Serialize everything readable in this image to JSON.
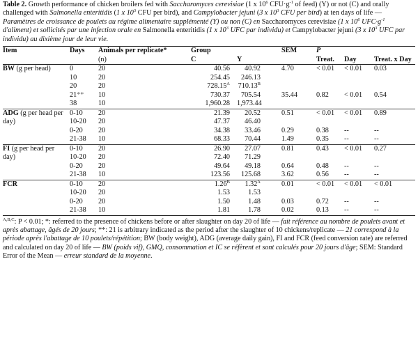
{
  "caption": {
    "label": "Table 2.",
    "en_1": " Growth performance of chicken broilers fed with ",
    "en_sc": "Saccharomyces cerevisiae",
    "en_2": " (1 x 10",
    "en_exp1": "6",
    "en_3": " CFU·g",
    "en_exp2": "-1",
    "en_4": " of feed) (Y) or not (C) and orally challenged with ",
    "en_se": "Salmonella enteritidis",
    "en_5": " (",
    "en_dose1": "1 x 10",
    "en_exp3": "3",
    "en_6": " CFU per bird), and ",
    "en_cj": "Campylobacter jejuni",
    "en_7": " (",
    "en_dose2": "3 x 10",
    "en_exp4": "3",
    "en_8": " CFU per bird",
    "en_9": ") at ten days of life — ",
    "fr_1": "Paramètres de croissance de poulets au régime alimentaire supplémenté (Y) ou non (C) en ",
    "fr_sc": "Saccharomyces cerevisiae",
    "fr_2": " (1 x 10",
    "fr_exp1": "6",
    "fr_3": " UFC·g",
    "fr_exp2": "-1",
    "fr_4": " d'aliment) et sollicités par une infection orale en ",
    "fr_se": "Salmonella enteritidis",
    "fr_5": " (1 x 10",
    "fr_exp3": "3",
    "fr_6": " UFC par individu) et ",
    "fr_cj": "Campylobacter jejuni",
    "fr_7": " (3 x 10",
    "fr_exp4": "3",
    "fr_8": " UFC par individu) au dixième jour de leur vie."
  },
  "header": {
    "item": "Item",
    "days": "Days",
    "animals": "Animals per replicate*",
    "animals_sub": "(n)",
    "group": "Group",
    "c": "C",
    "y": "Y",
    "sem": "SEM",
    "p": "P",
    "treat": "Treat.",
    "day": "Day",
    "treat_x_day": "Treat. x Day"
  },
  "rows": {
    "bw": {
      "item": "BW",
      "item_sub": " (g per head)",
      "r": [
        {
          "days": "0",
          "n": "20",
          "c": "40.56",
          "y": "40.92",
          "sem": "4.70",
          "pt": "< 0.01",
          "pd": "< 0.01",
          "ptd": "0.03"
        },
        {
          "days": "10",
          "n": "20",
          "c": "254.45",
          "y": "246.13",
          "sem": "",
          "pt": "",
          "pd": "",
          "ptd": ""
        },
        {
          "days": "20",
          "n": "20",
          "c": "728.15",
          "c_sup": "A",
          "y": "710.13",
          "y_sup": "B",
          "sem": "",
          "pt": "",
          "pd": "",
          "ptd": ""
        },
        {
          "days": "21",
          "days_mark": "**",
          "n": "10",
          "c": "730.37",
          "y": "705.54",
          "sem": "35.44",
          "pt": "0.82",
          "pd": "< 0.01",
          "ptd": "0.54"
        },
        {
          "days": "38",
          "n": "10",
          "c": "1,960.28",
          "y": "1,973.44",
          "sem": "",
          "pt": "",
          "pd": "",
          "ptd": ""
        }
      ]
    },
    "adg": {
      "item": "ADG",
      "item_sub": " (g per head per day)",
      "r": [
        {
          "days": "0-10",
          "n": "20",
          "c": "21.39",
          "y": "20.52",
          "sem": "0.51",
          "pt": "< 0.01",
          "pd": "< 0.01",
          "ptd": "0.89"
        },
        {
          "days": "10-20",
          "n": "20",
          "c": "47.37",
          "y": "46.40",
          "sem": "",
          "pt": "",
          "pd": "",
          "ptd": ""
        },
        {
          "days": "0-20",
          "n": "20",
          "c": "34.38",
          "y": "33.46",
          "sem": "0.29",
          "pt": "0.38",
          "pd": "--",
          "ptd": "--"
        },
        {
          "days": "21-38",
          "n": "10",
          "c": "68.33",
          "y": "70.44",
          "sem": "1.49",
          "pt": "0.35",
          "pd": "--",
          "ptd": "--"
        }
      ]
    },
    "fi": {
      "item": "FI",
      "item_sub": " (g per head per day)",
      "r": [
        {
          "days": "0-10",
          "n": "20",
          "c": "26.90",
          "y": "27.07",
          "sem": "0.81",
          "pt": "0.43",
          "pd": "< 0.01",
          "ptd": "0.27"
        },
        {
          "days": "10-20",
          "n": "20",
          "c": "72.40",
          "y": "71.29",
          "sem": "",
          "pt": "",
          "pd": "",
          "ptd": ""
        },
        {
          "days": "0-20",
          "n": "20",
          "c": "49.64",
          "y": "49.18",
          "sem": "0.64",
          "pt": "0.48",
          "pd": "--",
          "ptd": "--"
        },
        {
          "days": "21-38",
          "n": "10",
          "c": "123.56",
          "y": "125.68",
          "sem": "3.62",
          "pt": "0.56",
          "pd": "--",
          "ptd": "--"
        }
      ]
    },
    "fcr": {
      "item": "FCR",
      "r": [
        {
          "days": "0-10",
          "n": "20",
          "c": "1.26",
          "c_sup": "B",
          "y": "1.32",
          "y_sup": "A",
          "sem": "0.01",
          "pt": "< 0.01",
          "pd": "< 0.01",
          "ptd": "< 0.01"
        },
        {
          "days": "10-20",
          "n": "20",
          "c": "1.53",
          "y": "1.53",
          "sem": "",
          "pt": "",
          "pd": "",
          "ptd": ""
        },
        {
          "days": "0-20",
          "n": "20",
          "c": "1.50",
          "y": "1.48",
          "sem": "0.03",
          "pt": "0.72",
          "pd": "--",
          "ptd": "--"
        },
        {
          "days": "21-38",
          "n": "10",
          "c": "1.81",
          "y": "1.78",
          "sem": "0.02",
          "pt": "0.13",
          "pd": "--",
          "ptd": "--"
        }
      ]
    }
  },
  "footnote": {
    "sup_abc": "A,B,C",
    "p_text": ": P < 0.01; *: referred to the presence of chickens before or after slaughter on day 20 of life — ",
    "fr_1": "fait référence au nombre de poulets avant et après abattage, âgés de 20 jours",
    "mid_1": "; **: 21 is arbitrary indicated as the period after the slaughter of 10 chickens/replicate — ",
    "fr_2": "21 correspond à la période après l'abattage de 10 poulets/répétition",
    "mid_2": "; BW (body weight), ADG (average daily gain), FI and FCR (feed conversion rate) are referred and calculated on day 20 of life — ",
    "fr_3": "BW (poids vif), GMQ, consommation et IC se réfèrent et sont calculés pour 20 jours d'âge",
    "mid_3": "; SEM: Standard Error of the Mean — ",
    "fr_4": "erreur standard de la moyenne",
    "end": "."
  }
}
